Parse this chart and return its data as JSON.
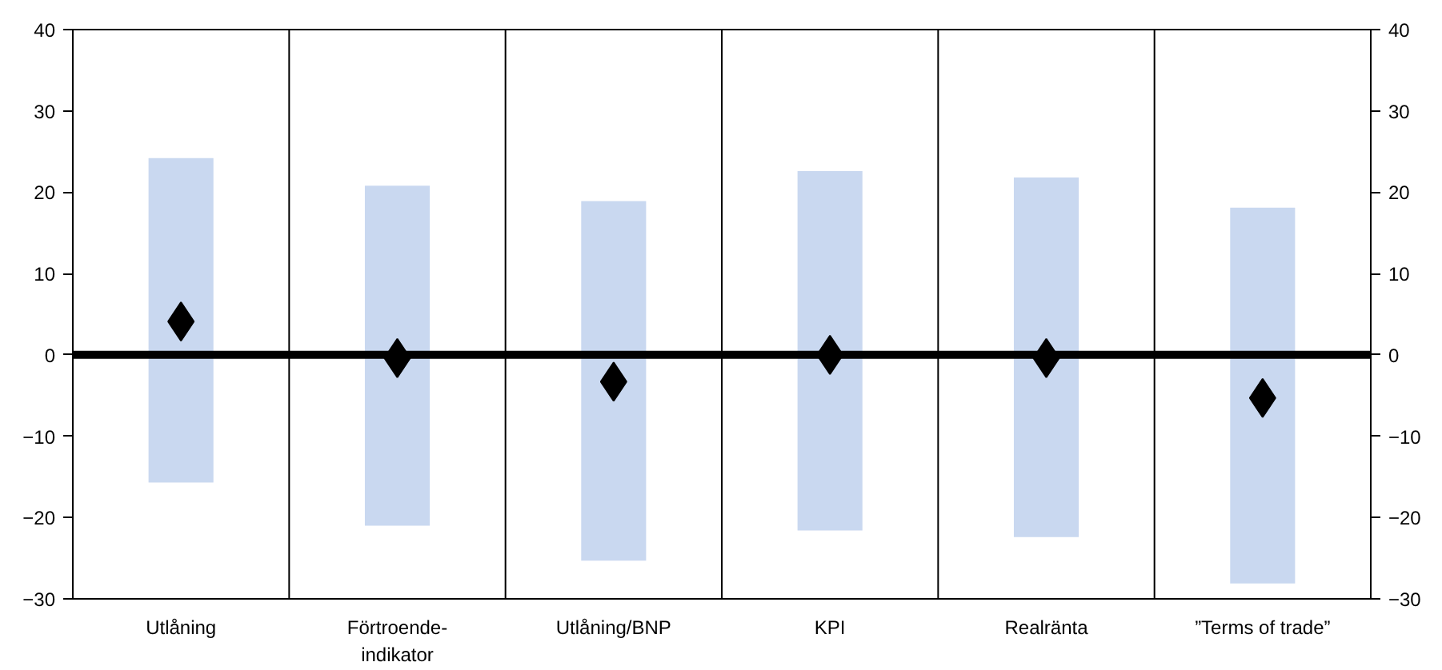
{
  "chart_data": {
    "type": "bar",
    "categories": [
      "Utlåning",
      "Förtroende-\nindikator",
      "Utlåning/BNP",
      "KPI",
      "Realränta",
      "”Terms of trade”"
    ],
    "series": [
      {
        "color": "#c9d8f0",
        "base": [
          -15.7,
          -21.0,
          -25.3,
          -21.6,
          -22.4,
          -28.1
        ],
        "values": [
          39.9,
          41.8,
          44.2,
          44.2,
          44.2,
          46.2
        ]
      },
      {
        "type": "scatter",
        "color": "#000000",
        "marker": "diamond",
        "x": [
          "Utlåning",
          "Förtroende-\nindikator",
          "Utlåning/BNP",
          "KPI",
          "Realränta",
          "”Terms of trade”"
        ],
        "values": [
          4.1,
          -0.4,
          -3.3,
          0.0,
          -0.4,
          -5.3
        ]
      }
    ],
    "ylim": [
      -30,
      40
    ],
    "yticks": [
      -30,
      -20,
      -10,
      0,
      10,
      20,
      30,
      40
    ],
    "y2lim": [
      -30,
      40
    ],
    "y2ticks": [
      -30,
      -20,
      -10,
      0,
      10,
      20,
      30,
      40
    ],
    "ref_lines": [
      {
        "axis": "y",
        "value": 0,
        "color": "#000000"
      }
    ],
    "grid": "x"
  }
}
